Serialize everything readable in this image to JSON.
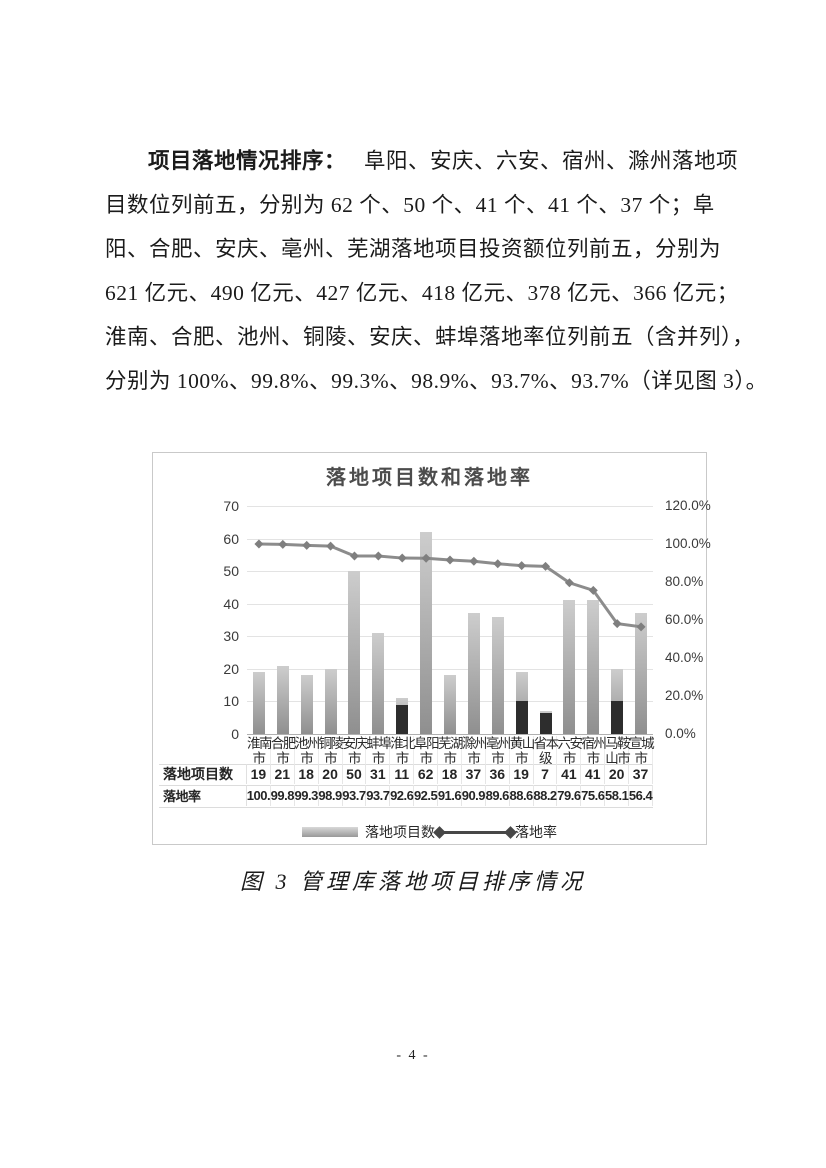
{
  "document": {
    "paragraph": {
      "line1_bold": "项目落地情况排序：",
      "line1_rest": "阜阳、安庆、六安、宿州、滁州落地项",
      "lines": [
        "目数位列前五，分别为 62 个、50 个、41 个、41 个、37 个；阜",
        "阳、合肥、安庆、亳州、芜湖落地项目投资额位列前五，分别为",
        "621 亿元、490 亿元、427 亿元、418 亿元、378 亿元、366 亿元；",
        "淮南、合肥、池州、铜陵、安庆、蚌埠落地率位列前五（含并列），",
        "分别为 100%、99.8%、99.3%、98.9%、93.7%、93.7%（详见图 3）。"
      ]
    },
    "figure_caption": "图 3 管理库落地项目排序情况",
    "page_number": "- 4 -"
  },
  "chart_data": {
    "type": "bar+line",
    "title": "落地项目数和落地率",
    "categories": [
      "淮南市",
      "合肥市",
      "池州市",
      "铜陵市",
      "安庆市",
      "蚌埠市",
      "淮北市",
      "阜阳市",
      "芜湖市",
      "滁州市",
      "亳州市",
      "黄山市",
      "省本级",
      "六安市",
      "宿州市",
      "马鞍山市",
      "宣城市"
    ],
    "series": [
      {
        "name": "落地项目数",
        "type": "bar",
        "axis": "left",
        "values": [
          19,
          21,
          18,
          20,
          50,
          31,
          11,
          62,
          18,
          37,
          36,
          19,
          7,
          41,
          41,
          20,
          37
        ]
      },
      {
        "name": "落地率",
        "type": "line",
        "axis": "right",
        "values": [
          100,
          99.8,
          99.3,
          98.9,
          93.7,
          93.7,
          92.6,
          92.5,
          91.6,
          90.9,
          89.6,
          88.6,
          88.2,
          79.6,
          75.6,
          58.1,
          56.4
        ],
        "display": [
          "100.",
          "99.8",
          "99.3",
          "98.9",
          "93.7",
          "93.7",
          "92.6",
          "92.5",
          "91.6",
          "90.9",
          "89.6",
          "88.6",
          "88.2",
          "79.6",
          "75.6",
          "58.1",
          "56.4"
        ]
      }
    ],
    "table_row_headers": [
      "落地项目数",
      "落地率"
    ],
    "left_axis": {
      "min": 0,
      "max": 70,
      "tick_step": 10,
      "ticks": [
        0,
        10,
        20,
        30,
        40,
        50,
        60,
        70
      ]
    },
    "right_axis": {
      "min": 0,
      "max": 120,
      "tick_labels_top_to_bottom": [
        "120.0%",
        "100.0%",
        "80.0%",
        "60.0%",
        "40.0%",
        "20.0%",
        "0.0%"
      ]
    },
    "grid": true,
    "legend_position": "bottom",
    "bar_dark_bottom": [
      0,
      0,
      0,
      0,
      0,
      0,
      9,
      0,
      0,
      0,
      0,
      10,
      6.5,
      0,
      0,
      10,
      0
    ],
    "colors": {
      "bar_top": "#cdcdcd",
      "bar_bottom": "#8f8f8f",
      "bar_dark": "#2d2d2d",
      "line": "#8c8c8c",
      "marker": "#7f7f7f",
      "grid": "#e3e3e3",
      "axis": "#b0b0b0",
      "border": "#c9c9c9",
      "text": "#2a2a2a"
    }
  }
}
